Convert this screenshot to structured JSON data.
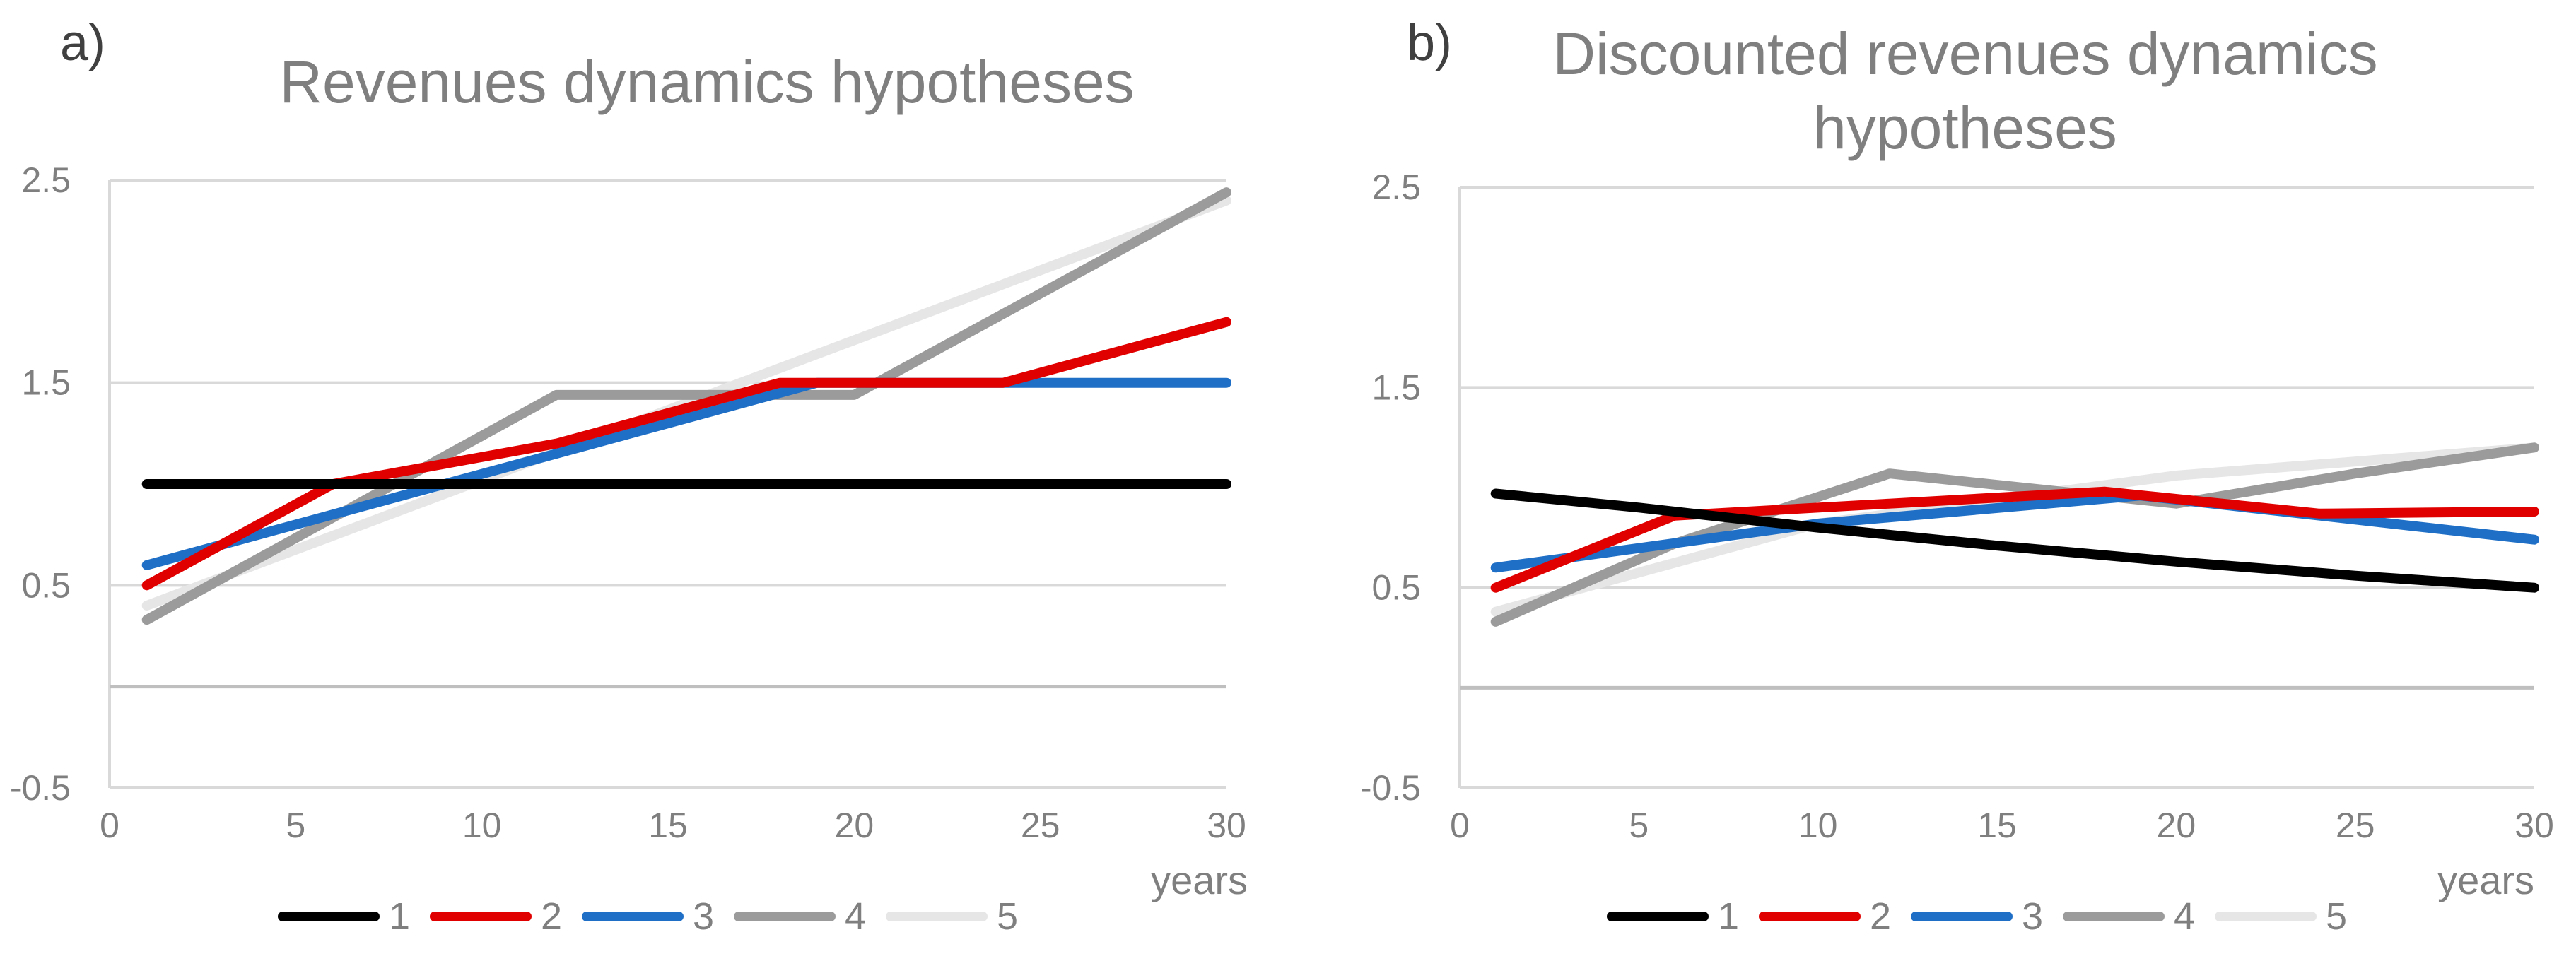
{
  "charts": [
    {
      "panel": "a)",
      "title_lines": [
        "Revenues dynamics hypotheses"
      ],
      "x_unit": "years",
      "y_ticks": [
        "2.5",
        "1.5",
        "0.5",
        "-0.5"
      ],
      "x_ticks": [
        "0",
        "5",
        "10",
        "15",
        "20",
        "25",
        "30"
      ],
      "legend": [
        "1",
        "2",
        "3",
        "4",
        "5"
      ]
    },
    {
      "panel": "b)",
      "title_lines": [
        "Discounted revenues dynamics",
        "hypotheses"
      ],
      "x_unit": "years",
      "y_ticks": [
        "2.5",
        "1.5",
        "0.5",
        "-0.5"
      ],
      "x_ticks": [
        "0",
        "5",
        "10",
        "15",
        "20",
        "25",
        "30"
      ],
      "legend": [
        "1",
        "2",
        "3",
        "4",
        "5"
      ]
    }
  ],
  "colors": {
    "1": "#000000",
    "2": "#e00000",
    "3": "#1f6fc6",
    "4": "#9b9b9b",
    "5": "#e6e6e6",
    "grid": "#d9d9d9",
    "zero": "#bfbfbf",
    "text": "#7f7f7f"
  },
  "chart_data": [
    {
      "type": "line",
      "title": "Revenues dynamics hypotheses",
      "xlabel": "years",
      "ylabel": "",
      "xlim": [
        0,
        30
      ],
      "ylim": [
        -0.5,
        2.5
      ],
      "grid": true,
      "legend_position": "bottom",
      "series": [
        {
          "name": "1",
          "x": [
            1,
            30
          ],
          "y": [
            1.0,
            1.0
          ]
        },
        {
          "name": "2",
          "x": [
            1,
            6,
            12,
            18,
            24,
            30
          ],
          "y": [
            0.5,
            1.0,
            1.2,
            1.5,
            1.5,
            1.8
          ]
        },
        {
          "name": "3",
          "x": [
            1,
            10,
            19,
            30
          ],
          "y": [
            0.6,
            1.05,
            1.5,
            1.5
          ]
        },
        {
          "name": "4",
          "x": [
            1,
            12,
            20,
            30
          ],
          "y": [
            0.33,
            1.44,
            1.44,
            2.44
          ]
        },
        {
          "name": "5",
          "x": [
            1,
            30
          ],
          "y": [
            0.4,
            2.4
          ]
        }
      ]
    },
    {
      "type": "line",
      "title": "Discounted revenues dynamics hypotheses",
      "xlabel": "years",
      "ylabel": "",
      "xlim": [
        0,
        30
      ],
      "ylim": [
        -0.5,
        2.5
      ],
      "grid": true,
      "legend_position": "bottom",
      "series": [
        {
          "name": "1",
          "x": [
            1,
            5,
            10,
            15,
            20,
            25,
            30
          ],
          "y": [
            0.97,
            0.9,
            0.8,
            0.71,
            0.63,
            0.56,
            0.5
          ]
        },
        {
          "name": "2",
          "x": [
            1,
            6,
            12,
            18,
            24,
            30
          ],
          "y": [
            0.5,
            0.86,
            0.92,
            0.98,
            0.87,
            0.88
          ]
        },
        {
          "name": "3",
          "x": [
            1,
            10,
            19,
            25,
            30
          ],
          "y": [
            0.6,
            0.82,
            0.96,
            0.84,
            0.74
          ]
        },
        {
          "name": "4",
          "x": [
            1,
            6,
            12,
            20,
            25,
            30
          ],
          "y": [
            0.33,
            0.72,
            1.07,
            0.92,
            1.07,
            1.2
          ]
        },
        {
          "name": "5",
          "x": [
            1,
            10,
            20,
            30
          ],
          "y": [
            0.38,
            0.82,
            1.06,
            1.2
          ]
        }
      ]
    }
  ]
}
